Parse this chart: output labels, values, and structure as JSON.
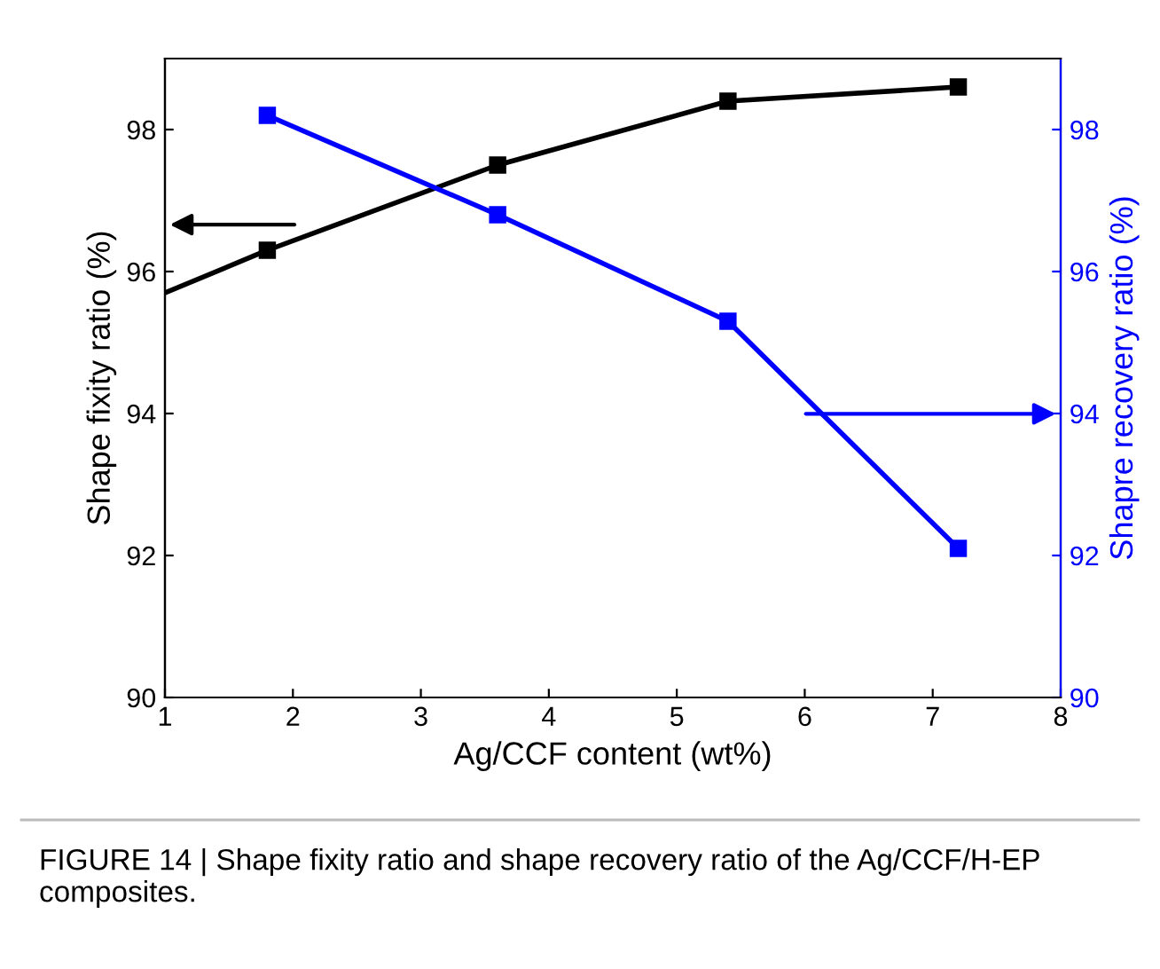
{
  "chart_data": {
    "type": "line",
    "xlabel": "Ag/CCF content (wt%)",
    "ylabel": "Shape fixity ratio (%)",
    "y2label": "Shapre recovery ratio (%)",
    "xlim": [
      1,
      8
    ],
    "xticks": [
      1,
      2,
      3,
      4,
      5,
      6,
      7,
      8
    ],
    "ylim": [
      90,
      99
    ],
    "yticks": [
      90,
      92,
      94,
      96,
      98
    ],
    "y2lim": [
      90,
      99
    ],
    "y2ticks": [
      90,
      92,
      94,
      96,
      98
    ],
    "series": [
      {
        "color": "#000000",
        "x": [
          1,
          1.8
        ],
        "values": [
          95.7,
          96.3
        ]
      },
      {
        "color": "#000000",
        "x": [
          1.8,
          3.6,
          5.4,
          7.2
        ],
        "values": [
          96.3,
          97.5,
          98.4,
          98.6
        ],
        "marker": "square"
      },
      {
        "color": "#0000ff",
        "x": [
          1.8,
          3.6,
          5.4,
          7.2
        ],
        "values": [
          98.2,
          96.8,
          95.3,
          92.1
        ],
        "marker": "square",
        "axis": "y2"
      }
    ],
    "grid": false,
    "legend": false,
    "annotations": [
      "FIGURE 14 | Shape fixity ratio and shape recovery ratio of the Ag/CCF/H-EP composites."
    ]
  }
}
